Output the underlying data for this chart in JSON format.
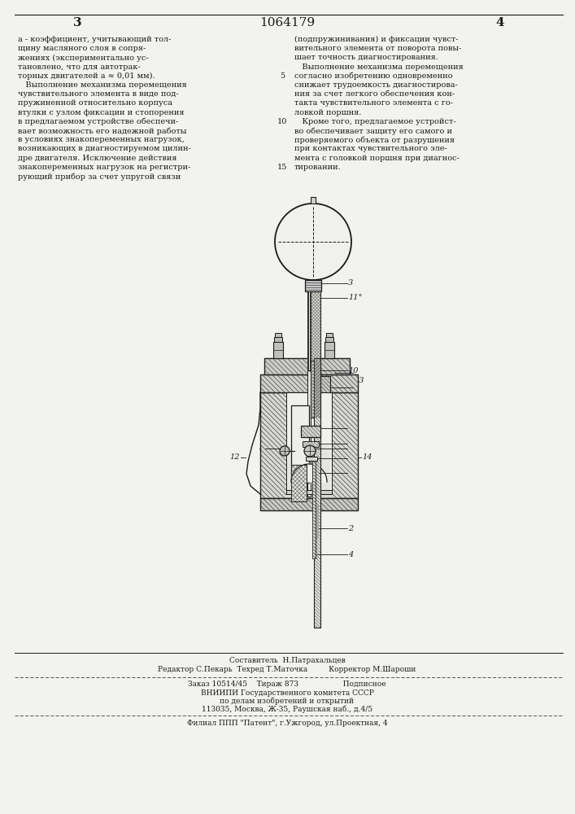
{
  "page_number_left": "3",
  "patent_number": "1064179",
  "page_number_right": "4",
  "bg_color": "#f2f2ee",
  "text_color": "#1a1a1a",
  "footer_composer": "Составитель  Н.Патрахальцев",
  "footer_editor": "Редактор С.Пекарь  Техред Т.Маточка",
  "footer_corrector": "Корректор М.Шароши",
  "footer_order": "Заказ 10514/45    Тираж 873                   Подписное",
  "footer_vnipi": "ВНИИПИ Государственного комитета СССР",
  "footer_affairs": "по делам изобретений и открытий",
  "footer_address": "113035, Москва, Ж-35, Раушская наб., д.4/5",
  "footer_filial": "Филиал ППП \"Патент\", г.Ужгород, ул.Проектная, 4"
}
